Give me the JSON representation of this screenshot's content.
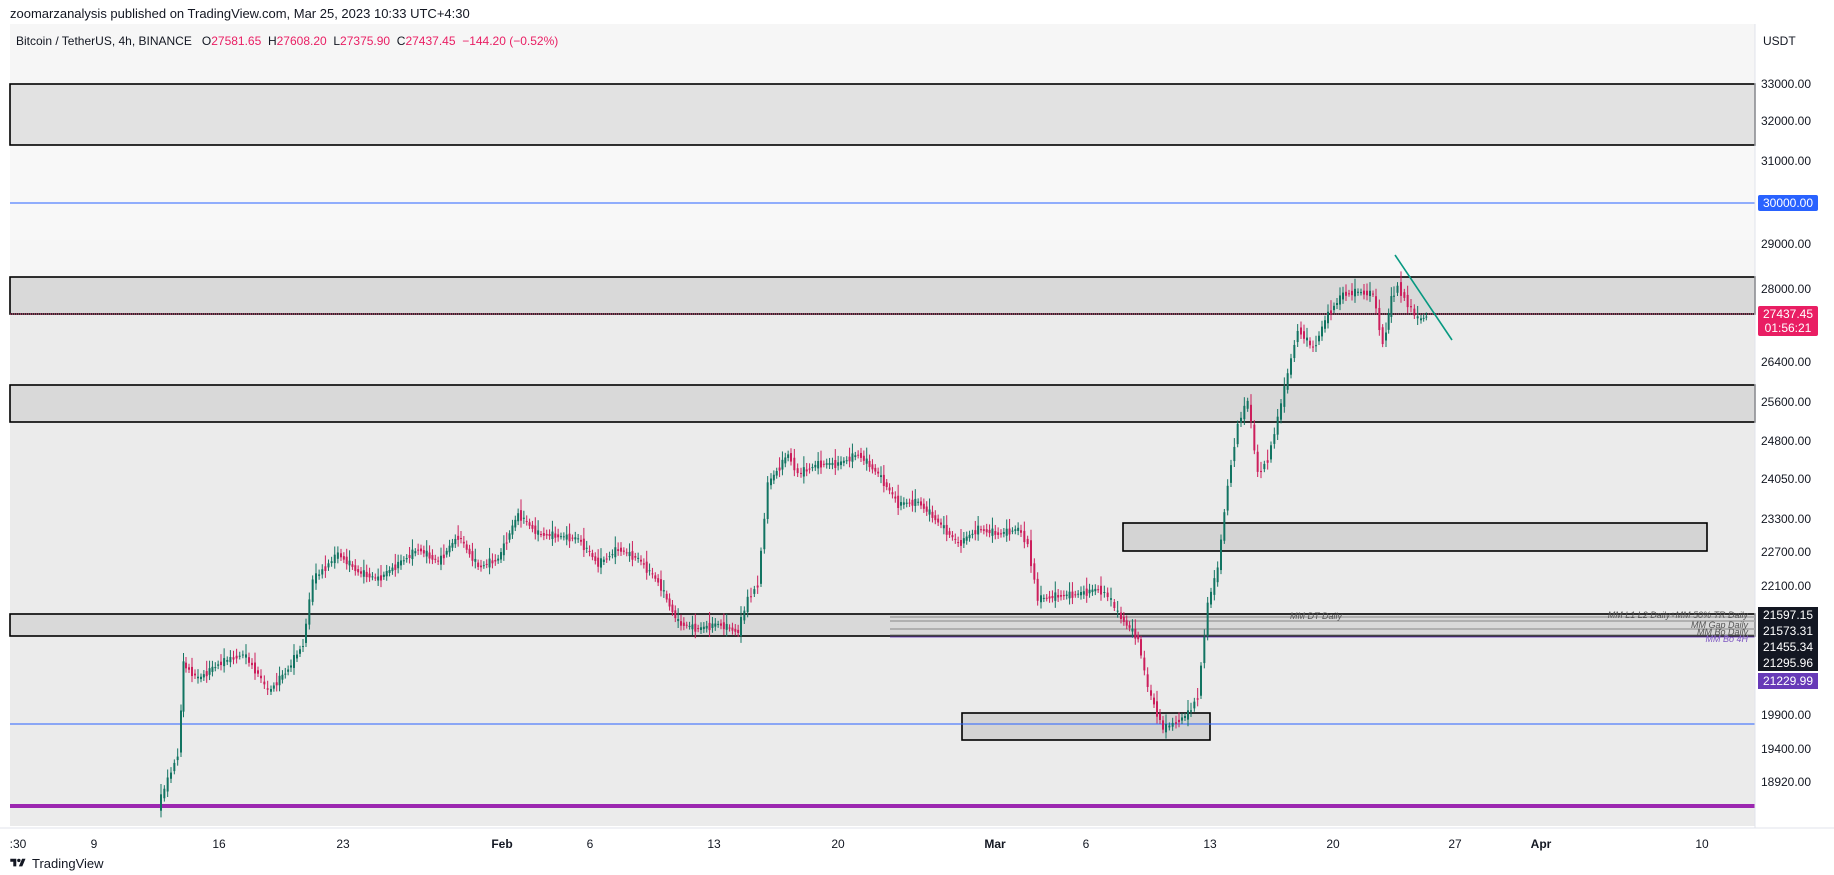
{
  "header": {
    "published": "zoomarzanalysis published on TradingView.com, Mar 25, 2023 10:33 UTC+4:30"
  },
  "legend": {
    "symbol": "Bitcoin / TetherUS, 4h, BINANCE",
    "open_label": "O",
    "open": "27581.65",
    "high_label": "H",
    "high": "27608.20",
    "low_label": "L",
    "low": "27375.90",
    "close_label": "C",
    "close": "27437.45",
    "change": "−144.20 (−0.52%)"
  },
  "price_axis": {
    "currency": "USDT",
    "ticks": [
      "33000.00",
      "32000.00",
      "31000.00",
      "30000.00",
      "29000.00",
      "28000.00",
      "26400.00",
      "25600.00",
      "24800.00",
      "24050.00",
      "23300.00",
      "22700.00",
      "22100.00",
      "19900.00",
      "19400.00",
      "18920.00"
    ],
    "badges": {
      "level_30000": "30000.00",
      "last_price": "27437.45",
      "countdown": "01:56:21",
      "l1": "21597.15",
      "l2": "21573.31",
      "l3": "21455.34",
      "l4": "21295.96",
      "l5": "21229.99"
    }
  },
  "time_axis": {
    "ticks": [
      ":30",
      "9",
      "16",
      "23",
      "Feb",
      "6",
      "13",
      "20",
      "Mar",
      "6",
      "13",
      "20",
      "27",
      "Apr",
      "10"
    ]
  },
  "annotations": {
    "mm_dt": "MM DT Daily",
    "mm_l1l2": "MM L1 L2 Daily+MM 50% TR Daily",
    "mm_gap": "MM Gap Daily",
    "mm_bo": "MM Bo Daily",
    "mm_bo4h": "MM Bo 4H"
  },
  "colors": {
    "up": "#089981",
    "down": "#f23645",
    "candle_up": "#127462",
    "candle_down": "#cc1f5c",
    "zone_fill": "#d6d6d6",
    "band_light": "#f7f7f7",
    "band_mid": "#ebebeb",
    "blue_line": "#2962ff",
    "purple_line": "#9c27b0",
    "last_price_badge": "#e91e63",
    "badge_30000": "#2962ff",
    "badge_dark": "#131722",
    "badge_purple": "#673ab7",
    "trendline": "#089981"
  },
  "footer": {
    "brand": "TradingView",
    "logo_icon": "tradingview-logo-icon"
  }
}
